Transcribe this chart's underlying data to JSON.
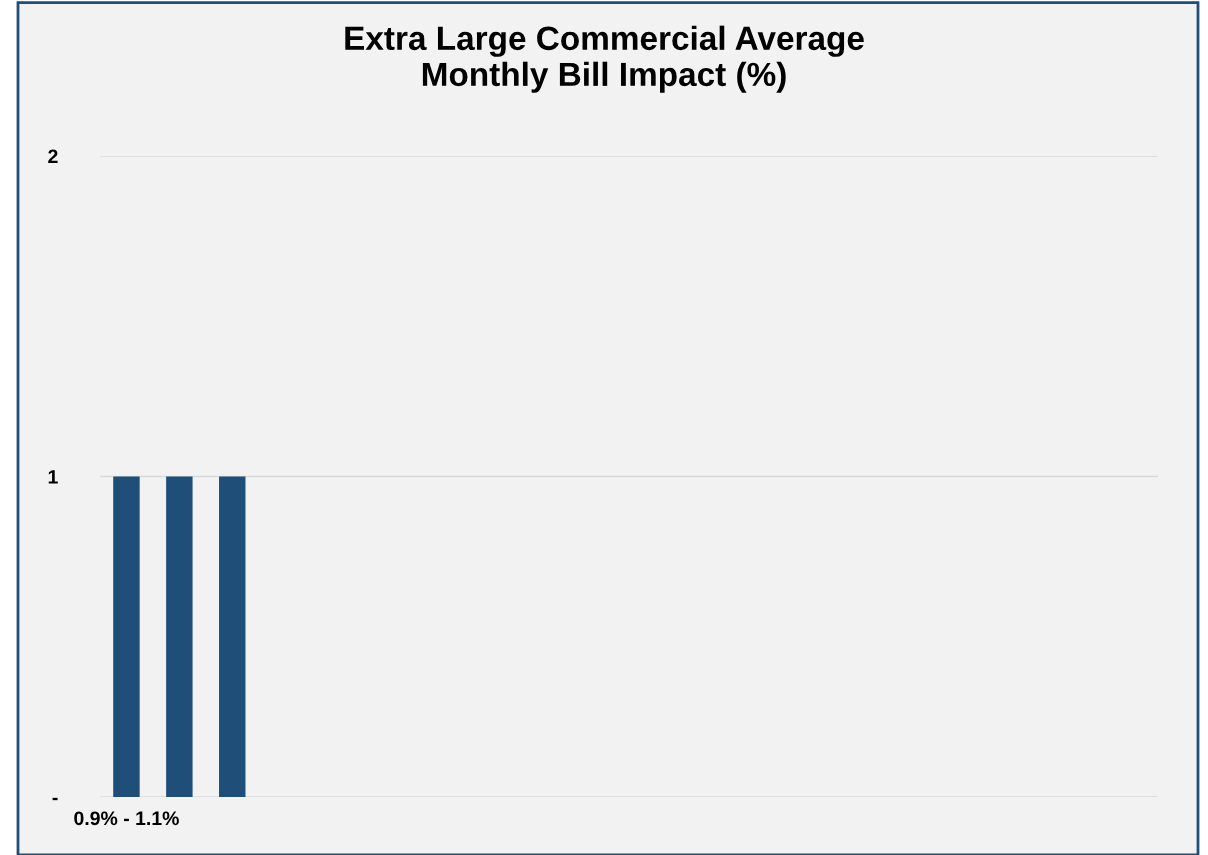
{
  "chart_data": {
    "type": "bar",
    "title": "Extra Large Commercial Average\nMonthly Bill Impact (%)",
    "categories": [
      "0.9% - 1.1%",
      null,
      null,
      null,
      null,
      null,
      null,
      null,
      null,
      null,
      null,
      null,
      null,
      null,
      null,
      null,
      null,
      null,
      null,
      null
    ],
    "values": [
      1,
      1,
      1,
      null,
      null,
      null,
      null,
      null,
      null,
      null,
      null,
      null,
      null,
      null,
      null,
      null,
      null,
      null,
      null,
      null
    ],
    "color": "#1f4e79",
    "ylim": [
      0,
      2
    ],
    "yticks": [
      {
        "value": 0,
        "label": "-"
      },
      1,
      2
    ],
    "grid": "y"
  }
}
